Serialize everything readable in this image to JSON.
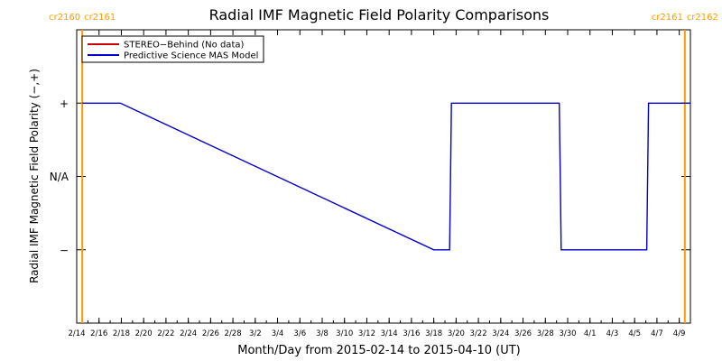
{
  "chart_data": {
    "type": "line",
    "title": "Radial IMF Magnetic Field Polarity Comparisons",
    "xlabel": "Month/Day from 2015-02-14 to 2015-04-10 (UT)",
    "ylabel": "Radial IMF Magnetic Field Polarity (−,+)",
    "x_range": [
      "2015-02-14",
      "2015-04-10"
    ],
    "y_levels": [
      -1,
      0,
      1
    ],
    "ylim": [
      -2,
      2
    ],
    "x_ticks": [
      {
        "date": "2015-02-14",
        "label": "2/14"
      },
      {
        "date": "2015-02-16",
        "label": "2/16"
      },
      {
        "date": "2015-02-18",
        "label": "2/18"
      },
      {
        "date": "2015-02-20",
        "label": "2/20"
      },
      {
        "date": "2015-02-22",
        "label": "2/22"
      },
      {
        "date": "2015-02-24",
        "label": "2/24"
      },
      {
        "date": "2015-02-26",
        "label": "2/26"
      },
      {
        "date": "2015-02-28",
        "label": "2/28"
      },
      {
        "date": "2015-03-02",
        "label": "3/2"
      },
      {
        "date": "2015-03-04",
        "label": "3/4"
      },
      {
        "date": "2015-03-06",
        "label": "3/6"
      },
      {
        "date": "2015-03-08",
        "label": "3/8"
      },
      {
        "date": "2015-03-10",
        "label": "3/10"
      },
      {
        "date": "2015-03-12",
        "label": "3/12"
      },
      {
        "date": "2015-03-14",
        "label": "3/14"
      },
      {
        "date": "2015-03-16",
        "label": "3/16"
      },
      {
        "date": "2015-03-18",
        "label": "3/18"
      },
      {
        "date": "2015-03-20",
        "label": "3/20"
      },
      {
        "date": "2015-03-22",
        "label": "3/22"
      },
      {
        "date": "2015-03-24",
        "label": "3/24"
      },
      {
        "date": "2015-03-26",
        "label": "3/26"
      },
      {
        "date": "2015-03-28",
        "label": "3/28"
      },
      {
        "date": "2015-03-30",
        "label": "3/30"
      },
      {
        "date": "2015-04-01",
        "label": "4/1"
      },
      {
        "date": "2015-04-03",
        "label": "4/3"
      },
      {
        "date": "2015-04-05",
        "label": "4/5"
      },
      {
        "date": "2015-04-07",
        "label": "4/7"
      },
      {
        "date": "2015-04-09",
        "label": "4/9"
      }
    ],
    "y_ticks": [
      {
        "value": 1,
        "label": "+"
      },
      {
        "value": 0,
        "label": "N/A"
      },
      {
        "value": -1,
        "label": "−"
      }
    ],
    "legend": {
      "placement": "top-left",
      "entries": [
        {
          "label": "STEREO−Behind (No data)",
          "color": "#cc0000"
        },
        {
          "label": "Predictive Science MAS Model",
          "color": "#0000cc"
        }
      ]
    },
    "series": [
      {
        "name": "STEREO−Behind (No data)",
        "color": "#cc0000",
        "points": []
      },
      {
        "name": "Predictive Science MAS Model",
        "color": "#0000cc",
        "points": [
          {
            "x": "2015-02-14T12:00",
            "y": 1
          },
          {
            "x": "2015-02-17T22:00",
            "y": 1
          },
          {
            "x": "2015-03-18T00:00",
            "y": -1
          },
          {
            "x": "2015-03-19T10:00",
            "y": -1
          },
          {
            "x": "2015-03-19T12:00",
            "y": 0
          },
          {
            "x": "2015-03-19T14:00",
            "y": 1
          },
          {
            "x": "2015-03-29T06:00",
            "y": 1
          },
          {
            "x": "2015-03-29T08:00",
            "y": 0
          },
          {
            "x": "2015-03-29T10:00",
            "y": -1
          },
          {
            "x": "2015-04-06T02:00",
            "y": -1
          },
          {
            "x": "2015-04-06T04:00",
            "y": 0
          },
          {
            "x": "2015-04-06T06:00",
            "y": 1
          },
          {
            "x": "2015-04-10T00:00",
            "y": 1
          }
        ]
      }
    ],
    "carrington_rotations": [
      {
        "date": "2015-02-14T12:00",
        "left_label": "cr2160",
        "right_label": "cr2161",
        "label_side": "left"
      },
      {
        "date": "2015-04-09T12:00",
        "left_label": "cr2161",
        "right_label": "cr2162",
        "label_side": "right"
      }
    ],
    "colors": {
      "axes": "#000000",
      "rotation_marker": "#ff9900",
      "rotation_label": "#ff9900"
    }
  }
}
